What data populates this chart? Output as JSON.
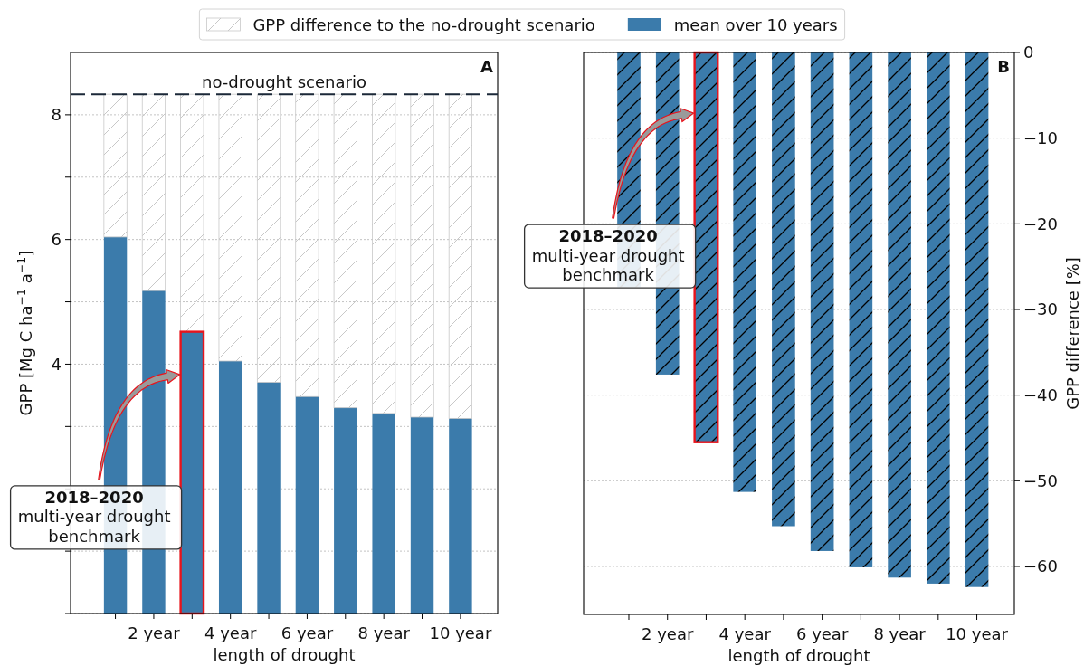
{
  "chart_data": [
    {
      "type": "bar",
      "stacked": true,
      "categories": [
        null,
        "2 year",
        null,
        "4 year",
        null,
        "6 year",
        null,
        "8 year",
        null,
        "10 year"
      ],
      "series": [
        {
          "name": "mean over 10 years",
          "color": "#3b7bab",
          "values": [
            6.04,
            5.18,
            4.52,
            4.05,
            3.71,
            3.48,
            3.3,
            3.21,
            3.15,
            3.13
          ]
        },
        {
          "name": "GPP difference to the no-drought scenario",
          "color": "#c8c8c8",
          "values": [
            2.29,
            3.15,
            3.81,
            4.28,
            4.62,
            4.85,
            5.03,
            5.12,
            5.18,
            5.2
          ]
        }
      ],
      "xlabel": "length of drought",
      "ylabel": "GPP [Mg C ha$^{−1}$ a$^{−1}$]",
      "ylim": [
        0,
        9
      ],
      "yticks": [
        {
          "value": 0,
          "label": null
        },
        {
          "value": 1,
          "label": null
        },
        {
          "value": 2,
          "label": null
        },
        {
          "value": 3,
          "label": null
        },
        4,
        {
          "value": 5,
          "label": null
        },
        6,
        {
          "value": 7,
          "label": null
        },
        8
      ],
      "grid": "y",
      "legend": "top",
      "ref_lines": [
        {
          "axis": "y",
          "value": 8.33,
          "label": "no-drought scenario",
          "color": "#1b2838",
          "line_style": "dashed"
        }
      ],
      "annotations": [
        "A",
        "2018–2020\nmulti-year drought\nbenchmark"
      ]
    },
    {
      "type": "bar",
      "categories": [
        null,
        "2 year",
        null,
        "4 year",
        null,
        "6 year",
        null,
        "8 year",
        null,
        "10 year"
      ],
      "values": [
        -27.4,
        -37.6,
        -45.5,
        -51.3,
        -55.3,
        -58.2,
        -60.1,
        -61.3,
        -62.0,
        -62.4
      ],
      "color": "#3b7bab",
      "xlabel": "length of drought",
      "ylabel": "GPP difference [%]",
      "ylim": [
        -65.6,
        0
      ],
      "yticks": [
        0,
        {
          "value": -10,
          "label": "−10"
        },
        {
          "value": -20,
          "label": "−20"
        },
        {
          "value": -30,
          "label": "−30"
        },
        {
          "value": -40,
          "label": "−40"
        },
        {
          "value": -50,
          "label": "−50"
        },
        {
          "value": -60,
          "label": "−60"
        }
      ],
      "grid": "y",
      "annotations": [
        "B",
        "2018–2020\nmulti-year drought\nbenchmark"
      ]
    }
  ]
}
